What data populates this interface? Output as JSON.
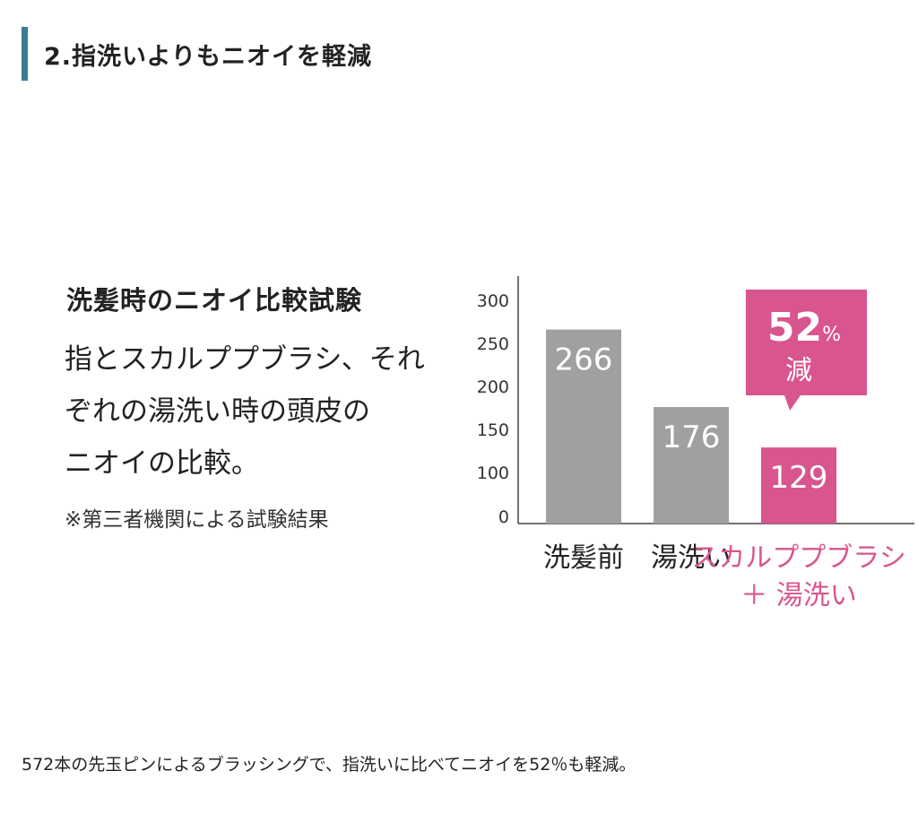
{
  "section": {
    "title": "2.指洗いよりもニオイを軽減"
  },
  "figure": {
    "title": "洗髪時のニオイ比較試験",
    "description_lines": [
      "指とスカルププブラシ、それ",
      "ぞれの湯洗い時の頭皮の",
      "ニオイの比較。"
    ],
    "note": "※第三者機関による試験結果"
  },
  "chart_data": {
    "type": "bar",
    "title": "",
    "xlabel": "",
    "ylabel": "",
    "categories": [
      [
        "洗髪前"
      ],
      [
        "湯洗い"
      ],
      [
        "スカルププブラシ",
        "＋ 湯洗い"
      ]
    ],
    "values": [
      266,
      176,
      129
    ],
    "value_labels": [
      "266",
      "176",
      "129"
    ],
    "bar_colors": [
      "#a0a0a0",
      "#a0a0a0",
      "#d9558f"
    ],
    "category_label_colors": [
      "#222222",
      "#222222",
      "#d9558f"
    ],
    "yticks": [
      0,
      100,
      150,
      200,
      250,
      300
    ],
    "ytick_labels": [
      "0",
      "100",
      "150",
      "200",
      "250",
      "300"
    ],
    "axis_break": true,
    "ylim": [
      0,
      300
    ],
    "grid": false,
    "legend": false,
    "callout": {
      "value": "52",
      "unit": "%",
      "label": "減",
      "bar_index": 2,
      "color": "#d9558f"
    }
  },
  "footer": {
    "text": "572本の先玉ピンによるブラッシングで、指洗いに比べてニオイを52％も軽減。"
  }
}
